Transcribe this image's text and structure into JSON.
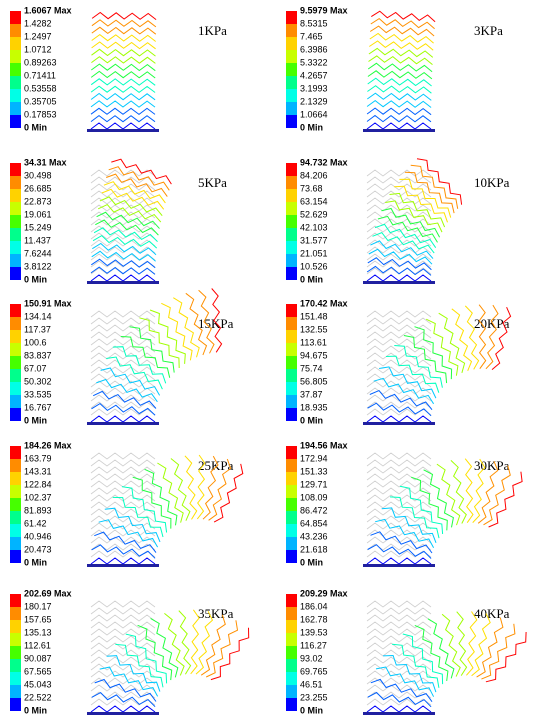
{
  "panels": [
    {
      "pressure": "1KPa",
      "legend": [
        "1.6067 Max",
        "1.4282",
        "1.2497",
        "1.0712",
        "0.89263",
        "0.71411",
        "0.53558",
        "0.35705",
        "0.17853",
        "0 Min"
      ]
    },
    {
      "pressure": "3KPa",
      "legend": [
        "9.5979 Max",
        "8.5315",
        "7.465",
        "6.3986",
        "5.3322",
        "4.2657",
        "3.1993",
        "2.1329",
        "1.0664",
        "0 Min"
      ]
    },
    {
      "pressure": "5KPa",
      "legend": [
        "34.31 Max",
        "30.498",
        "26.685",
        "22.873",
        "19.061",
        "15.249",
        "11.437",
        "7.6244",
        "3.8122",
        "0 Min"
      ]
    },
    {
      "pressure": "10KPa",
      "legend": [
        "94.732 Max",
        "84.206",
        "73.68",
        "63.154",
        "52.629",
        "42.103",
        "31.577",
        "21.051",
        "10.526",
        "0 Min"
      ]
    },
    {
      "pressure": "15KPa",
      "legend": [
        "150.91 Max",
        "134.14",
        "117.37",
        "100.6",
        "83.837",
        "67.07",
        "50.302",
        "33.535",
        "16.767",
        "0 Min"
      ]
    },
    {
      "pressure": "20KPa",
      "legend": [
        "170.42 Max",
        "151.48",
        "132.55",
        "113.61",
        "94.675",
        "75.74",
        "56.805",
        "37.87",
        "18.935",
        "0 Min"
      ]
    },
    {
      "pressure": "25KPa",
      "legend": [
        "184.26 Max",
        "163.79",
        "143.31",
        "122.84",
        "102.37",
        "81.893",
        "61.42",
        "40.946",
        "20.473",
        "0 Min"
      ]
    },
    {
      "pressure": "30KPa",
      "legend": [
        "194.56 Max",
        "172.94",
        "151.33",
        "129.71",
        "108.09",
        "86.472",
        "64.854",
        "43.236",
        "21.618",
        "0 Min"
      ]
    },
    {
      "pressure": "35KPa",
      "legend": [
        "202.69 Max",
        "180.17",
        "157.65",
        "135.13",
        "112.61",
        "90.087",
        "67.565",
        "45.043",
        "22.522",
        "0 Min"
      ]
    },
    {
      "pressure": "40KPa",
      "legend": [
        "209.29 Max",
        "186.04",
        "162.78",
        "139.53",
        "116.27",
        "93.02",
        "69.765",
        "46.51",
        "23.255",
        "0 Min"
      ]
    }
  ]
}
